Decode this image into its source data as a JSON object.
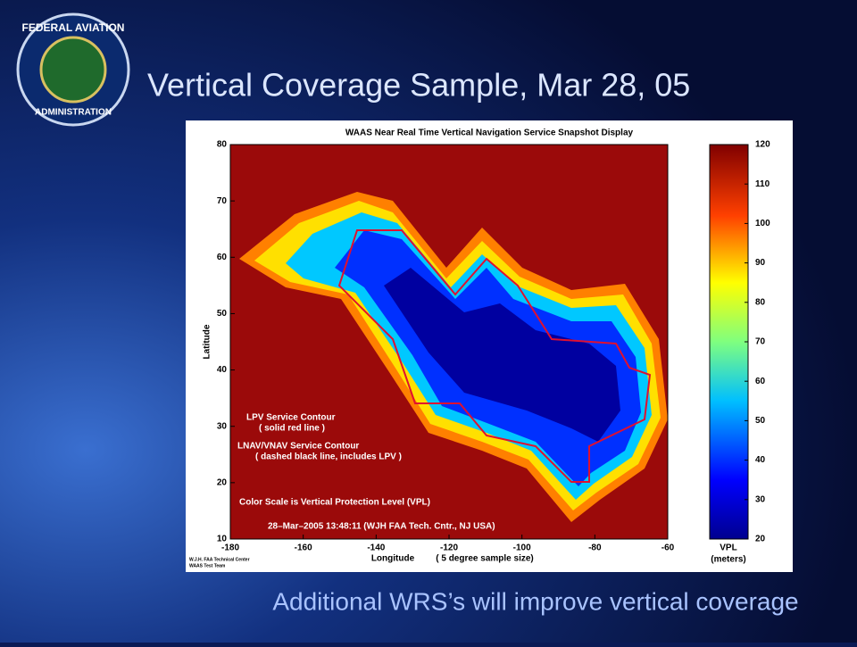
{
  "slide": {
    "title": "Vertical Coverage Sample, Mar 28, 05",
    "caption": "Additional WRS’s will improve vertical coverage",
    "logo_top": "FEDERAL AVIATION",
    "logo_bottom": "ADMINISTRATION"
  },
  "map": {
    "title": "WAAS Near Real Time Vertical Navigation Service Snapshot Display",
    "xlabel": "Longitude",
    "xnote": "( 5 degree sample size)",
    "ylabel": "Latitude",
    "xlim": [
      -180,
      -60
    ],
    "xticks": [
      -180,
      -160,
      -140,
      -120,
      -100,
      -80,
      -60
    ],
    "ylim": [
      10,
      80
    ],
    "yticks": [
      10,
      20,
      30,
      40,
      50,
      60,
      70,
      80
    ],
    "annotations": [
      "LPV Service Contour",
      "( solid red line )",
      "LNAV/VNAV Service Contour",
      "( dashed black line, includes LPV )",
      "Color Scale is Vertical Protection Level (VPL)",
      "28–Mar–2005 13:48:11  (WJH FAA Tech. Cntr., NJ USA)"
    ],
    "credit": [
      "W.J.H. FAA Technical Center",
      "WAAS Test Team"
    ],
    "colorbar": {
      "lim": [
        20,
        120
      ],
      "ticks": [
        20,
        30,
        40,
        50,
        60,
        70,
        80,
        90,
        100,
        110,
        120
      ],
      "label": "VPL",
      "units": "(meters)"
    }
  }
}
